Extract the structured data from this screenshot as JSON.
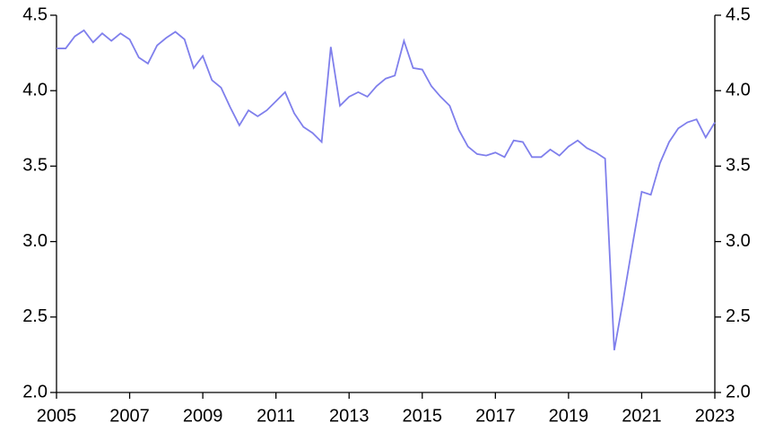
{
  "chart_data": {
    "type": "line",
    "x": [
      2005,
      2005.25,
      2005.5,
      2005.75,
      2006,
      2006.25,
      2006.5,
      2006.75,
      2007,
      2007.25,
      2007.5,
      2007.75,
      2008,
      2008.25,
      2008.5,
      2008.75,
      2009,
      2009.25,
      2009.5,
      2009.75,
      2010,
      2010.25,
      2010.5,
      2010.75,
      2011,
      2011.25,
      2011.5,
      2011.75,
      2012,
      2012.25,
      2012.5,
      2012.75,
      2013,
      2013.25,
      2013.5,
      2013.75,
      2014,
      2014.25,
      2014.5,
      2014.75,
      2015,
      2015.25,
      2015.5,
      2015.75,
      2016,
      2016.25,
      2016.5,
      2016.75,
      2017,
      2017.25,
      2017.5,
      2017.75,
      2018,
      2018.25,
      2018.5,
      2018.75,
      2019,
      2019.25,
      2019.5,
      2019.75,
      2020,
      2020.25,
      2020.5,
      2020.75,
      2021,
      2021.25,
      2021.5,
      2021.75,
      2022,
      2022.25,
      2022.5,
      2022.75,
      2023
    ],
    "series": [
      {
        "color": "#7f7fec",
        "values": [
          4.28,
          4.28,
          4.36,
          4.4,
          4.32,
          4.38,
          4.33,
          4.38,
          4.34,
          4.22,
          4.18,
          4.3,
          4.35,
          4.39,
          4.34,
          4.15,
          4.23,
          4.07,
          4.02,
          3.89,
          3.77,
          3.87,
          3.83,
          3.87,
          3.93,
          3.99,
          3.85,
          3.76,
          3.72,
          3.66,
          4.29,
          3.9,
          3.96,
          3.99,
          3.96,
          4.03,
          4.08,
          4.1,
          4.33,
          4.15,
          4.14,
          4.03,
          3.96,
          3.9,
          3.74,
          3.63,
          3.58,
          3.57,
          3.59,
          3.56,
          3.67,
          3.66,
          3.56,
          3.56,
          3.61,
          3.57,
          3.63,
          3.67,
          3.62,
          3.59,
          3.55,
          2.28,
          2.62,
          2.98,
          3.33,
          3.31,
          3.52,
          3.66,
          3.75,
          3.79,
          3.81,
          3.69,
          3.79
        ]
      }
    ],
    "xlim": [
      2005,
      2023
    ],
    "xticks": [
      2005,
      2007,
      2009,
      2011,
      2013,
      2015,
      2017,
      2019,
      2021,
      2023
    ],
    "ylim": [
      2,
      4.5
    ],
    "yticks": [
      {
        "value": 2,
        "label": "2.0"
      },
      {
        "value": 2.5,
        "label": "2.5"
      },
      {
        "value": 3,
        "label": "3.0"
      },
      {
        "value": 3.5,
        "label": "3.5"
      },
      {
        "value": 4,
        "label": "4.0"
      },
      {
        "value": 4.5,
        "label": "4.5"
      }
    ],
    "y2lim": [
      2,
      4.5
    ],
    "y2ticks": [
      {
        "value": 2,
        "label": "2.0"
      },
      {
        "value": 2.5,
        "label": "2.5"
      },
      {
        "value": 3,
        "label": "3.0"
      },
      {
        "value": 3.5,
        "label": "3.5"
      },
      {
        "value": 4,
        "label": "4.0"
      },
      {
        "value": 4.5,
        "label": "4.5"
      }
    ]
  }
}
